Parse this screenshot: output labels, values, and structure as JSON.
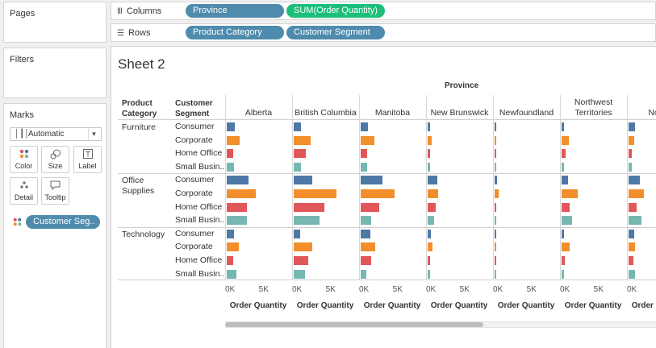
{
  "side": {
    "pages_title": "Pages",
    "filters_title": "Filters",
    "marks_title": "Marks",
    "mark_type": "Automatic",
    "mark_buttons": {
      "color": "Color",
      "size": "Size",
      "label": "Label",
      "detail": "Detail",
      "tooltip": "Tooltip"
    },
    "color_pill": "Customer Seg.."
  },
  "shelves": {
    "columns_label": "Columns",
    "rows_label": "Rows",
    "columns": [
      "Province",
      "SUM(Order Quantity)"
    ],
    "rows": [
      "Product Category",
      "Customer Segment"
    ]
  },
  "sheet": {
    "title": "Sheet 2",
    "province_heading": "Province",
    "col_header_category": "Product Category",
    "col_header_segment": "Customer Segment",
    "axis_ticks": [
      "0K",
      "5K"
    ],
    "axis_title": "Order Quantity"
  },
  "colors": {
    "Consumer": "#4e79a7",
    "Corporate": "#f28e2b",
    "Home Office": "#e15759",
    "Small Business": "#76b7b2"
  },
  "chart_data": {
    "type": "bar",
    "title": "Sheet 2",
    "xlabel": "Order Quantity",
    "xlim": [
      0,
      9000
    ],
    "columns": [
      "Alberta",
      "British Columbia",
      "Manitoba",
      "New Brunswick",
      "Newfoundland",
      "Northwest Territories",
      "Nova.."
    ],
    "categories": [
      "Furniture",
      "Office Supplies",
      "Technology"
    ],
    "category_labels": [
      "Furniture",
      "Office Supplies",
      "Technology"
    ],
    "segments": [
      "Consumer",
      "Corporate",
      "Home Office",
      "Small Business"
    ],
    "segment_labels": [
      "Consumer",
      "Corporate",
      "Home Office",
      "Small Busin.."
    ],
    "values": {
      "Alberta": {
        "Furniture": [
          1200,
          1900,
          900,
          1100
        ],
        "Office Supplies": [
          3200,
          4300,
          3000,
          3000
        ],
        "Technology": [
          1100,
          1800,
          1000,
          1400
        ]
      },
      "British Columbia": {
        "Furniture": [
          1100,
          2500,
          1800,
          1100
        ],
        "Office Supplies": [
          2700,
          6400,
          4500,
          3800
        ],
        "Technology": [
          1000,
          2700,
          2200,
          1700
        ]
      },
      "Manitoba": {
        "Furniture": [
          1100,
          2000,
          900,
          900
        ],
        "Office Supplies": [
          3200,
          5000,
          2800,
          1600
        ],
        "Technology": [
          1400,
          2100,
          1500,
          800
        ]
      },
      "New Brunswick": {
        "Furniture": [
          400,
          600,
          400,
          400
        ],
        "Office Supplies": [
          1400,
          1600,
          1200,
          900
        ],
        "Technology": [
          500,
          700,
          400,
          300
        ]
      },
      "Newfoundland": {
        "Furniture": [
          100,
          100,
          100,
          100
        ],
        "Office Supplies": [
          300,
          600,
          200,
          100
        ],
        "Technology": [
          100,
          200,
          100,
          100
        ]
      },
      "Northwest Territories": {
        "Furniture": [
          300,
          1100,
          600,
          400
        ],
        "Office Supplies": [
          1000,
          2400,
          1200,
          1500
        ],
        "Technology": [
          300,
          1200,
          500,
          400
        ]
      },
      "Nova..": {
        "Furniture": [
          900,
          800,
          500,
          500
        ],
        "Office Supplies": [
          1700,
          2300,
          1200,
          1900
        ],
        "Technology": [
          800,
          1000,
          700,
          1000
        ]
      }
    }
  }
}
